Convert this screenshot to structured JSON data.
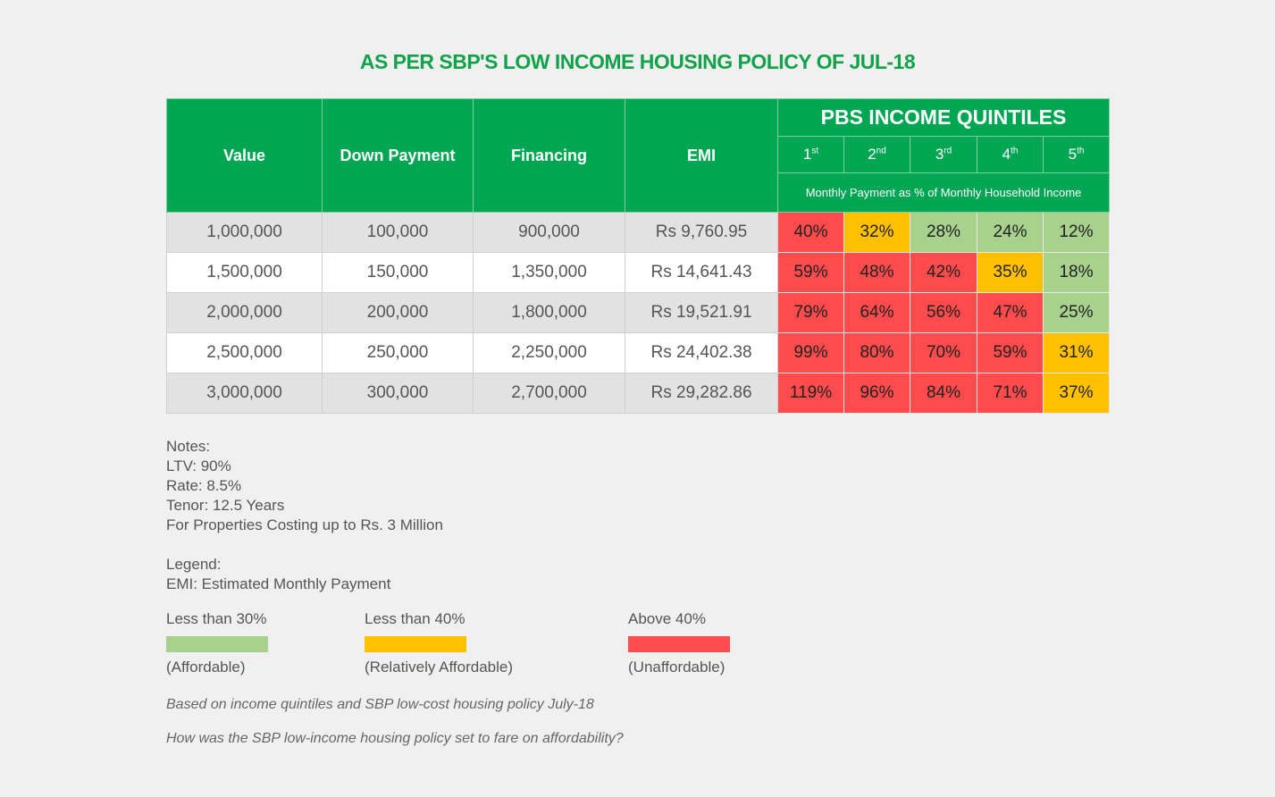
{
  "title": "AS PER SBP'S LOW INCOME HOUSING POLICY OF JUL-18",
  "colors": {
    "header": "#00a651",
    "affordable": "#a9d18e",
    "relatively_affordable": "#ffc000",
    "unaffordable": "#ff4b4b"
  },
  "table": {
    "headers": {
      "value": "Value",
      "down_payment": "Down Payment",
      "financing": "Financing",
      "emi": "EMI",
      "quintiles_title": "PBS INCOME QUINTILES",
      "subheader": "Monthly Payment as % of Monthly Household Income"
    },
    "quintiles": [
      {
        "n": "1",
        "sup": "st"
      },
      {
        "n": "2",
        "sup": "nd"
      },
      {
        "n": "3",
        "sup": "rd"
      },
      {
        "n": "4",
        "sup": "th"
      },
      {
        "n": "5",
        "sup": "th"
      }
    ],
    "rows": [
      {
        "value": "1,000,000",
        "down": "100,000",
        "fin": "900,000",
        "emi": "Rs 9,760.95",
        "pct": [
          "40%",
          "32%",
          "28%",
          "24%",
          "12%"
        ],
        "lvl": [
          "r",
          "y",
          "g",
          "g",
          "g"
        ]
      },
      {
        "value": "1,500,000",
        "down": "150,000",
        "fin": "1,350,000",
        "emi": "Rs 14,641.43",
        "pct": [
          "59%",
          "48%",
          "42%",
          "35%",
          "18%"
        ],
        "lvl": [
          "r",
          "r",
          "r",
          "y",
          "g"
        ]
      },
      {
        "value": "2,000,000",
        "down": "200,000",
        "fin": "1,800,000",
        "emi": "Rs 19,521.91",
        "pct": [
          "79%",
          "64%",
          "56%",
          "47%",
          "25%"
        ],
        "lvl": [
          "r",
          "r",
          "r",
          "r",
          "g"
        ]
      },
      {
        "value": "2,500,000",
        "down": "250,000",
        "fin": "2,250,000",
        "emi": "Rs 24,402.38",
        "pct": [
          "99%",
          "80%",
          "70%",
          "59%",
          "31%"
        ],
        "lvl": [
          "r",
          "r",
          "r",
          "r",
          "y"
        ]
      },
      {
        "value": "3,000,000",
        "down": "300,000",
        "fin": "2,700,000",
        "emi": "Rs 29,282.86",
        "pct": [
          "119%",
          "96%",
          "84%",
          "71%",
          "37%"
        ],
        "lvl": [
          "r",
          "r",
          "r",
          "r",
          "y"
        ]
      }
    ]
  },
  "notes": [
    "Notes:",
    "LTV: 90%",
    "Rate: 8.5%",
    "Tenor: 12.5 Years",
    "For Properties Costing up to Rs. 3 Million",
    "",
    "Legend:",
    "EMI: Estimated Monthly Payment"
  ],
  "legend": [
    {
      "top": "Less than 30%",
      "bottom": "(Affordable)"
    },
    {
      "top": "Less than 40%",
      "bottom": "(Relatively Affordable)"
    },
    {
      "top": "Above 40%",
      "bottom": "(Unaffordable)"
    }
  ],
  "captions": [
    "Based on income quintiles and SBP low-cost housing policy July-18",
    "How was the SBP low-income housing policy set to fare on affordability?"
  ]
}
